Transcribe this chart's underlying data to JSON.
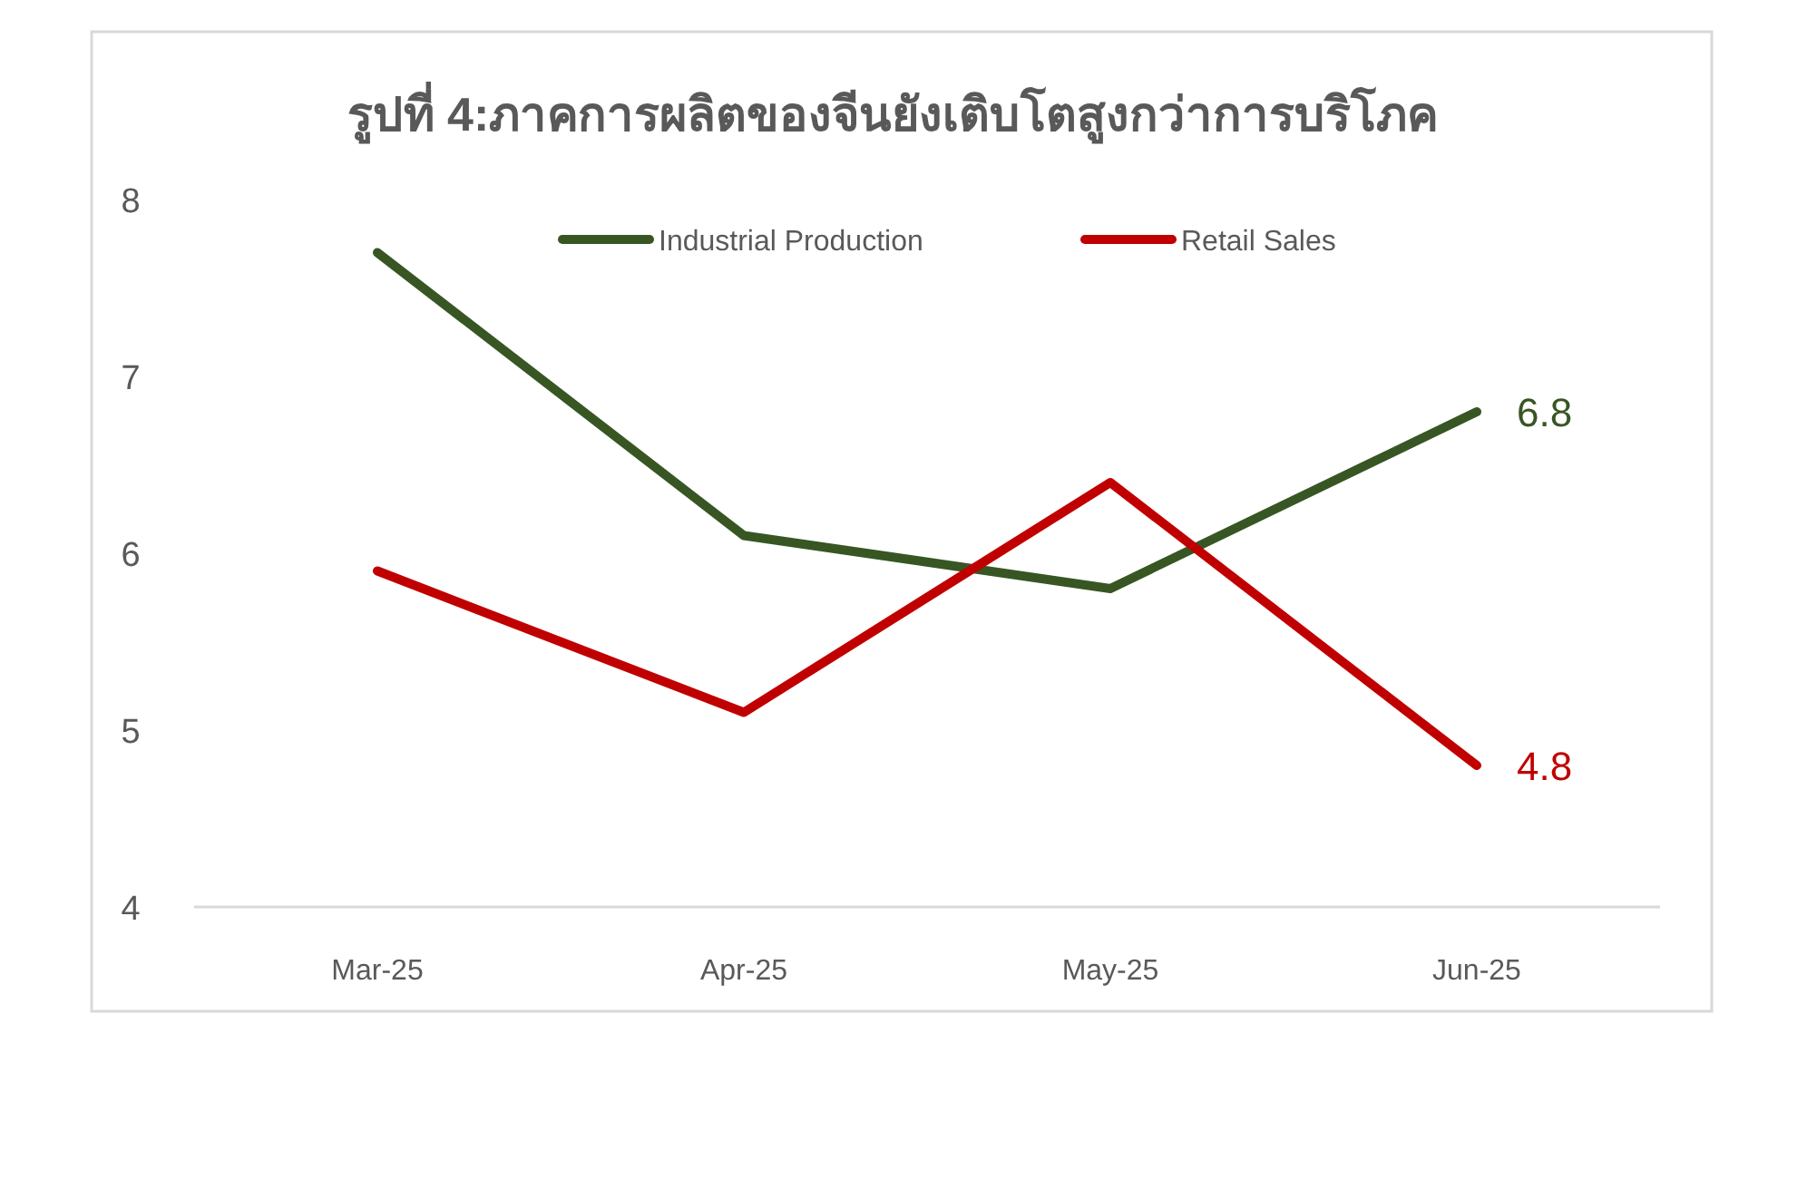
{
  "chart_data": {
    "type": "line",
    "title": "รูปที่ 4:ภาคการผลิตของจีนยังเติบโตสูงกว่าการบริโภค",
    "categories": [
      "Mar-25",
      "Apr-25",
      "May-25",
      "Jun-25"
    ],
    "series": [
      {
        "name": "Industrial Production",
        "color": "#375623",
        "values": [
          7.7,
          6.1,
          5.8,
          6.8
        ],
        "value_labels": [
          null,
          null,
          null,
          "6.8"
        ]
      },
      {
        "name": "Retail Sales",
        "color": "#c00000",
        "values": [
          5.9,
          5.1,
          6.4,
          4.8
        ],
        "value_labels": [
          null,
          null,
          null,
          "4.8"
        ]
      }
    ],
    "ylim": [
      4,
      8
    ],
    "yticks": [
      4,
      5,
      6,
      7,
      8
    ],
    "grid": false,
    "legend": "top",
    "marker": "none",
    "line_style": "solid"
  }
}
